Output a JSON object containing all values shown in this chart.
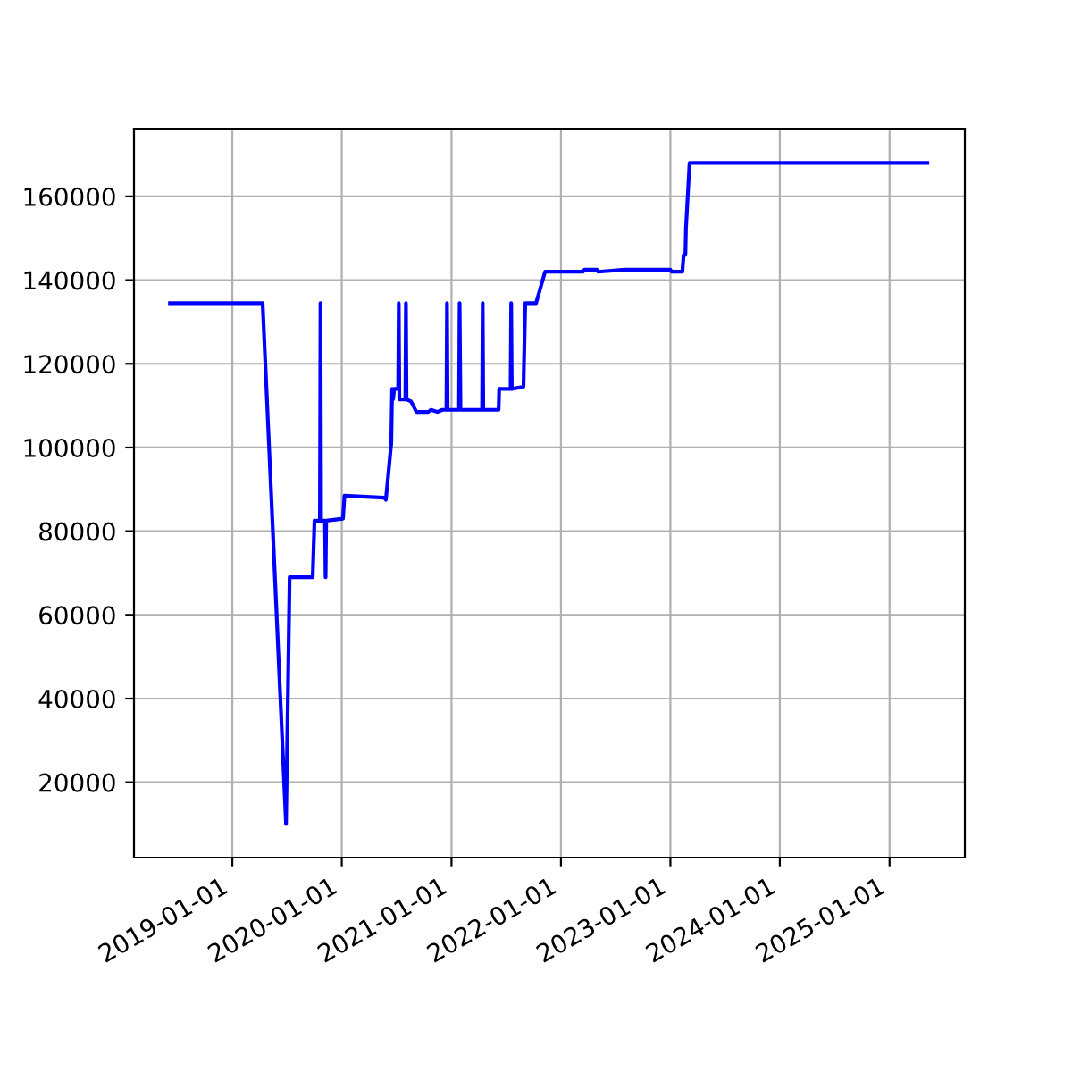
{
  "chart_data": {
    "type": "line",
    "x": [
      "2018-06-07",
      "2019-04-12",
      "2019-06-29",
      "2019-07-11",
      "2019-09-26",
      "2019-10-02",
      "2019-10-20",
      "2019-10-22",
      "2019-10-24",
      "2019-11-06",
      "2019-11-08",
      "2019-11-10",
      "2020-01-05",
      "2020-01-10",
      "2020-05-21",
      "2020-05-27",
      "2020-06-14",
      "2020-06-17",
      "2020-06-20",
      "2020-06-24",
      "2020-07-07",
      "2020-07-09",
      "2020-07-11",
      "2020-07-31",
      "2020-08-02",
      "2020-08-04",
      "2020-08-19",
      "2020-09-06",
      "2020-10-15",
      "2020-10-25",
      "2020-11-15",
      "2020-12-01",
      "2020-12-15",
      "2020-12-17",
      "2020-12-19",
      "2021-01-26",
      "2021-01-28",
      "2021-01-31",
      "2021-04-13",
      "2021-04-15",
      "2021-04-17",
      "2021-06-07",
      "2021-06-09",
      "2021-07-17",
      "2021-07-19",
      "2021-07-21",
      "2021-08-29",
      "2021-09-04",
      "2021-10-10",
      "2021-11-09",
      "2022-03-15",
      "2022-03-20",
      "2022-05-01",
      "2022-05-05",
      "2022-08-01",
      "2023-01-01",
      "2023-01-05",
      "2023-02-10",
      "2023-02-14",
      "2023-02-20",
      "2023-02-22",
      "2023-03-06",
      "2025-05-07"
    ],
    "series": [
      {
        "color": "#0000ff",
        "values": [
          134500,
          134500,
          10000,
          69000,
          69000,
          82500,
          82500,
          134500,
          82500,
          82500,
          69000,
          82500,
          83000,
          88500,
          88000,
          87500,
          101000,
          114000,
          111500,
          114000,
          114000,
          134500,
          111500,
          111500,
          134500,
          111500,
          111000,
          108500,
          108500,
          109000,
          108500,
          109000,
          109000,
          134500,
          109000,
          109000,
          134500,
          109000,
          109000,
          134500,
          109000,
          109000,
          114000,
          114000,
          134500,
          114000,
          114500,
          134500,
          134500,
          142000,
          142000,
          142500,
          142500,
          142000,
          142500,
          142500,
          142000,
          142000,
          146000,
          146000,
          152500,
          168000,
          168000
        ]
      }
    ],
    "xlim": [
      "2018-02-07",
      "2025-09-09"
    ],
    "xticks": [
      "2019-01-01",
      "2020-01-01",
      "2021-01-01",
      "2022-01-01",
      "2023-01-01",
      "2024-01-01",
      "2025-01-01"
    ],
    "ylim": [
      2000,
      176200
    ],
    "yticks": [
      20000,
      40000,
      60000,
      80000,
      100000,
      120000,
      140000,
      160000
    ],
    "grid": true
  }
}
